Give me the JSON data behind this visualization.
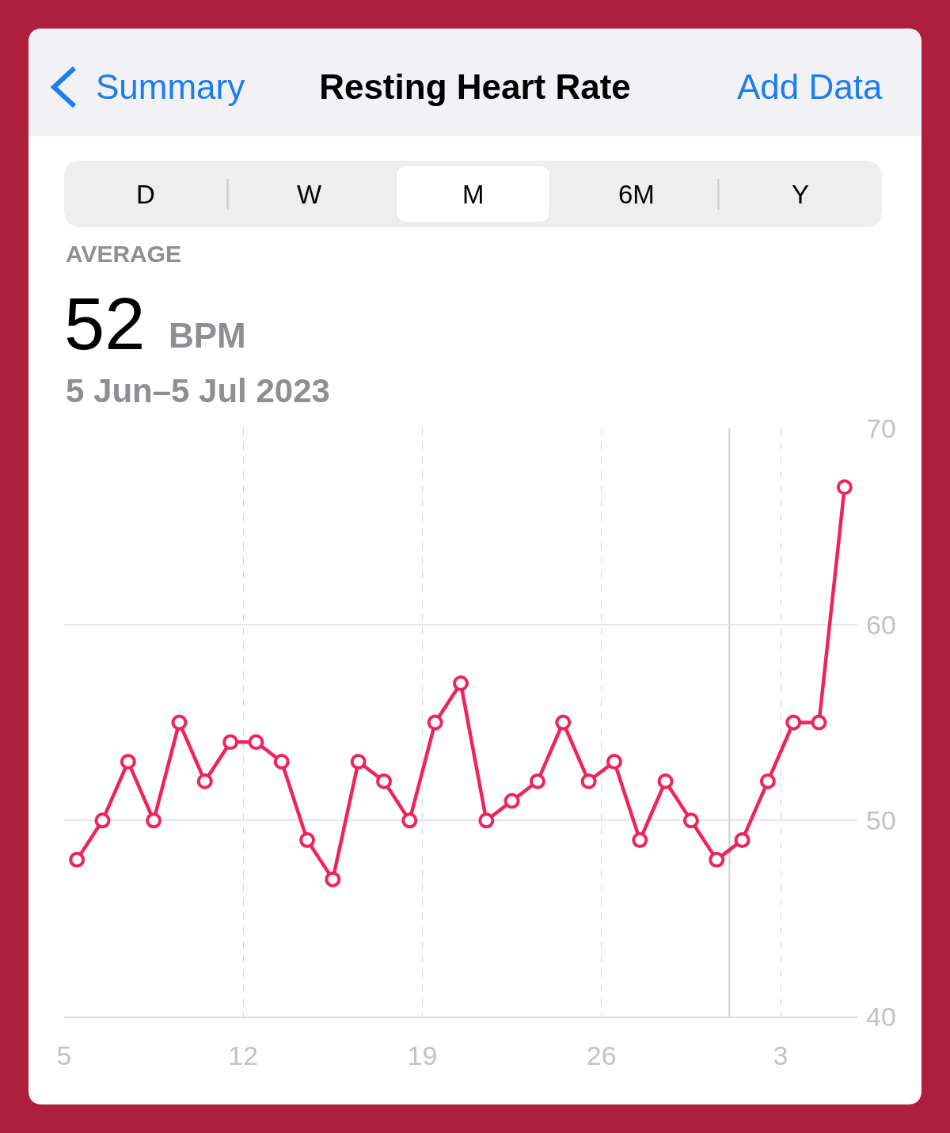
{
  "chart_data": {
    "type": "line",
    "title": "Resting Heart Rate",
    "annotations": [
      "Summary",
      "Add Data",
      "D",
      "W",
      "M",
      "6M",
      "Y",
      "AVERAGE",
      "52",
      "BPM",
      "5 Jun–5 Jul 2023"
    ],
    "x": [
      "2023-06-05T12:00",
      "2023-06-06T12:00",
      "2023-06-07T12:00",
      "2023-06-08T12:00",
      "2023-06-09T12:00",
      "2023-06-10T12:00",
      "2023-06-11T12:00",
      "2023-06-12T12:00",
      "2023-06-13T12:00",
      "2023-06-14T12:00",
      "2023-06-15T12:00",
      "2023-06-16T12:00",
      "2023-06-17T12:00",
      "2023-06-18T12:00",
      "2023-06-19T12:00",
      "2023-06-20T12:00",
      "2023-06-21T12:00",
      "2023-06-22T12:00",
      "2023-06-23T12:00",
      "2023-06-24T12:00",
      "2023-06-25T12:00",
      "2023-06-26T12:00",
      "2023-06-27T12:00",
      "2023-06-28T12:00",
      "2023-06-29T12:00",
      "2023-06-30T12:00",
      "2023-07-01T12:00",
      "2023-07-02T12:00",
      "2023-07-03T12:00",
      "2023-07-04T12:00",
      "2023-07-05T12:00"
    ],
    "values": [
      48,
      50,
      53,
      50,
      55,
      52,
      54,
      54,
      53,
      49,
      47,
      53,
      52,
      50,
      55,
      57,
      50,
      51,
      52,
      55,
      52,
      53,
      49,
      52,
      50,
      48,
      49,
      52,
      55,
      55,
      67
    ],
    "color": "#f0245a",
    "marker": "circle",
    "line_style": "solid",
    "xlim": [
      "2023-06-05",
      "2023-07-06"
    ],
    "xticks": [
      {
        "value": "2023-06-05",
        "label": "5"
      },
      {
        "value": "2023-06-12",
        "label": "12"
      },
      {
        "value": "2023-06-19",
        "label": "19"
      },
      {
        "value": "2023-06-26",
        "label": "26"
      },
      {
        "value": "2023-07-03",
        "label": "3"
      }
    ],
    "ylim": [
      40,
      70
    ],
    "yticks": [
      40,
      50,
      60,
      70
    ],
    "grid": true,
    "ref_lines": [
      {
        "axis": "x",
        "value": "2023-07-01",
        "color": "#cfcfd4"
      }
    ]
  }
}
